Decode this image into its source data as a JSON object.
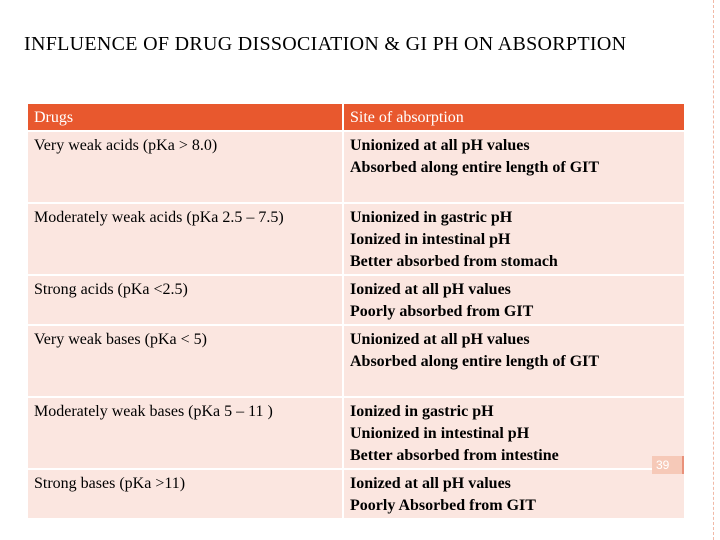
{
  "slide": {
    "title": "INFLUENCE OF DRUG DISSOCIATION & GI PH ON ABSORPTION",
    "page_number": "39"
  },
  "table": {
    "headers": [
      "Drugs",
      "Site  of  absorption"
    ],
    "rows": [
      {
        "drug": "Very weak acids  (pKa > 8.0)",
        "site": [
          "Unionized at all pH values",
          "Absorbed along entire length of GIT"
        ]
      },
      {
        "drug": "Moderately weak acids  (pKa  2.5 – 7.5)",
        "site": [
          "Unionized in gastric pH",
          "Ionized in intestinal pH",
          "Better absorbed from stomach"
        ]
      },
      {
        "drug": "Strong acids  (pKa <2.5)",
        "site": [
          "Ionized at all pH values",
          "Poorly absorbed from GIT"
        ]
      },
      {
        "drug": "Very weak bases (pKa < 5)",
        "site": [
          "Unionized at all pH values",
          "Absorbed along entire length of GIT"
        ]
      },
      {
        "drug": "Moderately weak bases (pKa  5 – 11 )",
        "site": [
          "Ionized in gastric pH",
          "Unionized in intestinal pH",
          "Better absorbed from intestine"
        ]
      },
      {
        "drug": "Strong bases  (pKa >11)",
        "site": [
          "Ionized at all pH values",
          "Poorly Absorbed from GIT"
        ]
      }
    ]
  },
  "colors": {
    "header_bg": "#e8582e",
    "cell_bg": "#fbe6e0",
    "accent": "#f6c9b8"
  }
}
